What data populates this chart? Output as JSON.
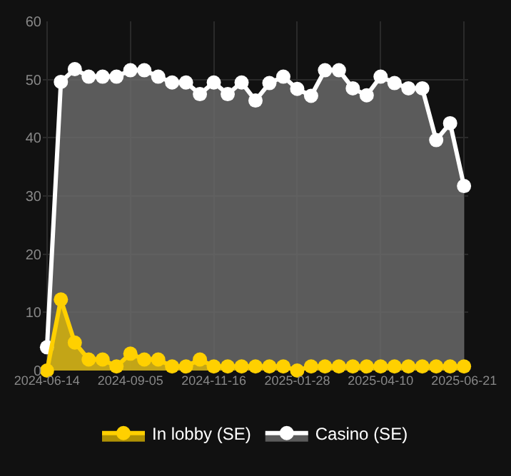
{
  "chart_data": {
    "type": "area",
    "categories": [
      "2024-06-14",
      null,
      null,
      null,
      null,
      null,
      "2024-09-05",
      null,
      null,
      null,
      null,
      null,
      "2024-11-16",
      null,
      null,
      null,
      null,
      null,
      "2025-01-28",
      null,
      null,
      null,
      null,
      null,
      "2025-04-10",
      null,
      null,
      null,
      null,
      null,
      "2025-06-21"
    ],
    "series": [
      {
        "name": "In lobby (SE)",
        "color": "#ffd000",
        "values": [
          0,
          12.2,
          4.8,
          1.9,
          1.9,
          0.7,
          2.9,
          1.9,
          1.9,
          0.7,
          0.7,
          1.9,
          0.7,
          0.7,
          0.7,
          0.7,
          0.7,
          0.7,
          0,
          0.7,
          0.7,
          0.7,
          0.7,
          0.7,
          0.7,
          0.7,
          0.7,
          0.7,
          0.7,
          0.7,
          0.7
        ]
      },
      {
        "name": "Casino (SE)",
        "color": "#ffffff",
        "values": [
          4,
          49.6,
          51.8,
          50.5,
          50.5,
          50.5,
          51.6,
          51.6,
          50.5,
          49.5,
          49.5,
          47.5,
          49.5,
          47.5,
          49.5,
          46.4,
          49.4,
          50.5,
          48.4,
          47.2,
          51.6,
          51.6,
          48.5,
          47.3,
          50.5,
          49.4,
          48.5,
          48.5,
          39.6,
          42.5,
          31.7
        ]
      }
    ],
    "ylim": [
      0,
      60
    ],
    "yticks": [
      0,
      10,
      20,
      30,
      40,
      50,
      60
    ],
    "grid": true,
    "legend": "bottom",
    "marker": "circle",
    "line_style": "solid"
  }
}
